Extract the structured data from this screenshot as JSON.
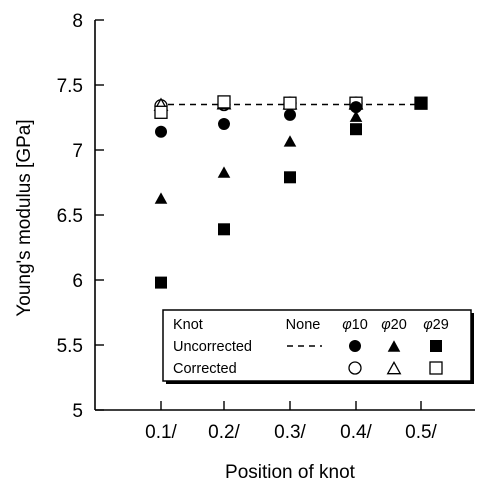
{
  "chart_data": {
    "type": "scatter",
    "title": "",
    "xlabel": "Position of knot",
    "ylabel": "Young's modulus [GPa]",
    "categories": [
      "0.1/",
      "0.2/",
      "0.3/",
      "0.4/",
      "0.5/"
    ],
    "yticks": [
      "5",
      "5.5",
      "6",
      "6.5",
      "7",
      "7.5",
      "8"
    ],
    "ylim": [
      5,
      8
    ],
    "grid": false,
    "reference_line": {
      "name": "None",
      "value": 7.35,
      "style": "dashed",
      "x_range": [
        "0.1/",
        "0.5/"
      ]
    },
    "series": [
      {
        "name": "φ10 Uncorrected",
        "marker": "filled-circle",
        "values": [
          7.14,
          7.2,
          7.27,
          7.33,
          null
        ]
      },
      {
        "name": "φ20 Uncorrected",
        "marker": "filled-triangle",
        "values": [
          6.63,
          6.83,
          7.07,
          7.26,
          null
        ]
      },
      {
        "name": "φ29 Uncorrected",
        "marker": "filled-square",
        "values": [
          5.98,
          6.39,
          6.79,
          7.16,
          7.36
        ]
      },
      {
        "name": "φ10 Corrected",
        "marker": "open-circle",
        "values": [
          7.34,
          7.35,
          7.36,
          7.36,
          null
        ]
      },
      {
        "name": "φ20 Corrected",
        "marker": "open-triangle",
        "values": [
          7.35,
          7.36,
          7.36,
          7.36,
          null
        ]
      },
      {
        "name": "φ29 Corrected",
        "marker": "open-square",
        "values": [
          7.29,
          7.37,
          7.36,
          7.36,
          7.36
        ]
      }
    ],
    "legend": {
      "position": "lower-right",
      "header": {
        "knot": "Knot",
        "none": "None",
        "cols": [
          "10",
          "20",
          "29"
        ]
      },
      "rows": [
        {
          "label": "Uncorrected",
          "fill": "filled",
          "has_line": true
        },
        {
          "label": "Corrected",
          "fill": "open",
          "has_line": false
        }
      ],
      "phi": "φ"
    }
  }
}
